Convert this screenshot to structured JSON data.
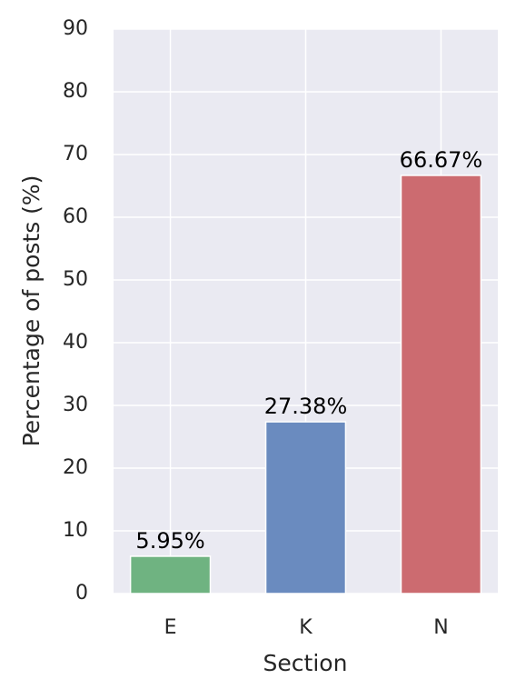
{
  "chart_data": {
    "type": "bar",
    "x_label": "Section",
    "y_label": "Percentage of posts (%)",
    "categories": [
      "E",
      "K",
      "N"
    ],
    "values": [
      5.95,
      27.38,
      66.67
    ],
    "value_labels": [
      "5.95%",
      "27.38%",
      "66.67%"
    ],
    "colors": [
      "#6fb381",
      "#6a8bbf",
      "#cc6b70"
    ],
    "ylim": [
      0,
      90
    ],
    "yticks": [
      0,
      10,
      20,
      30,
      40,
      50,
      60,
      70,
      80,
      90
    ],
    "grid": true
  }
}
